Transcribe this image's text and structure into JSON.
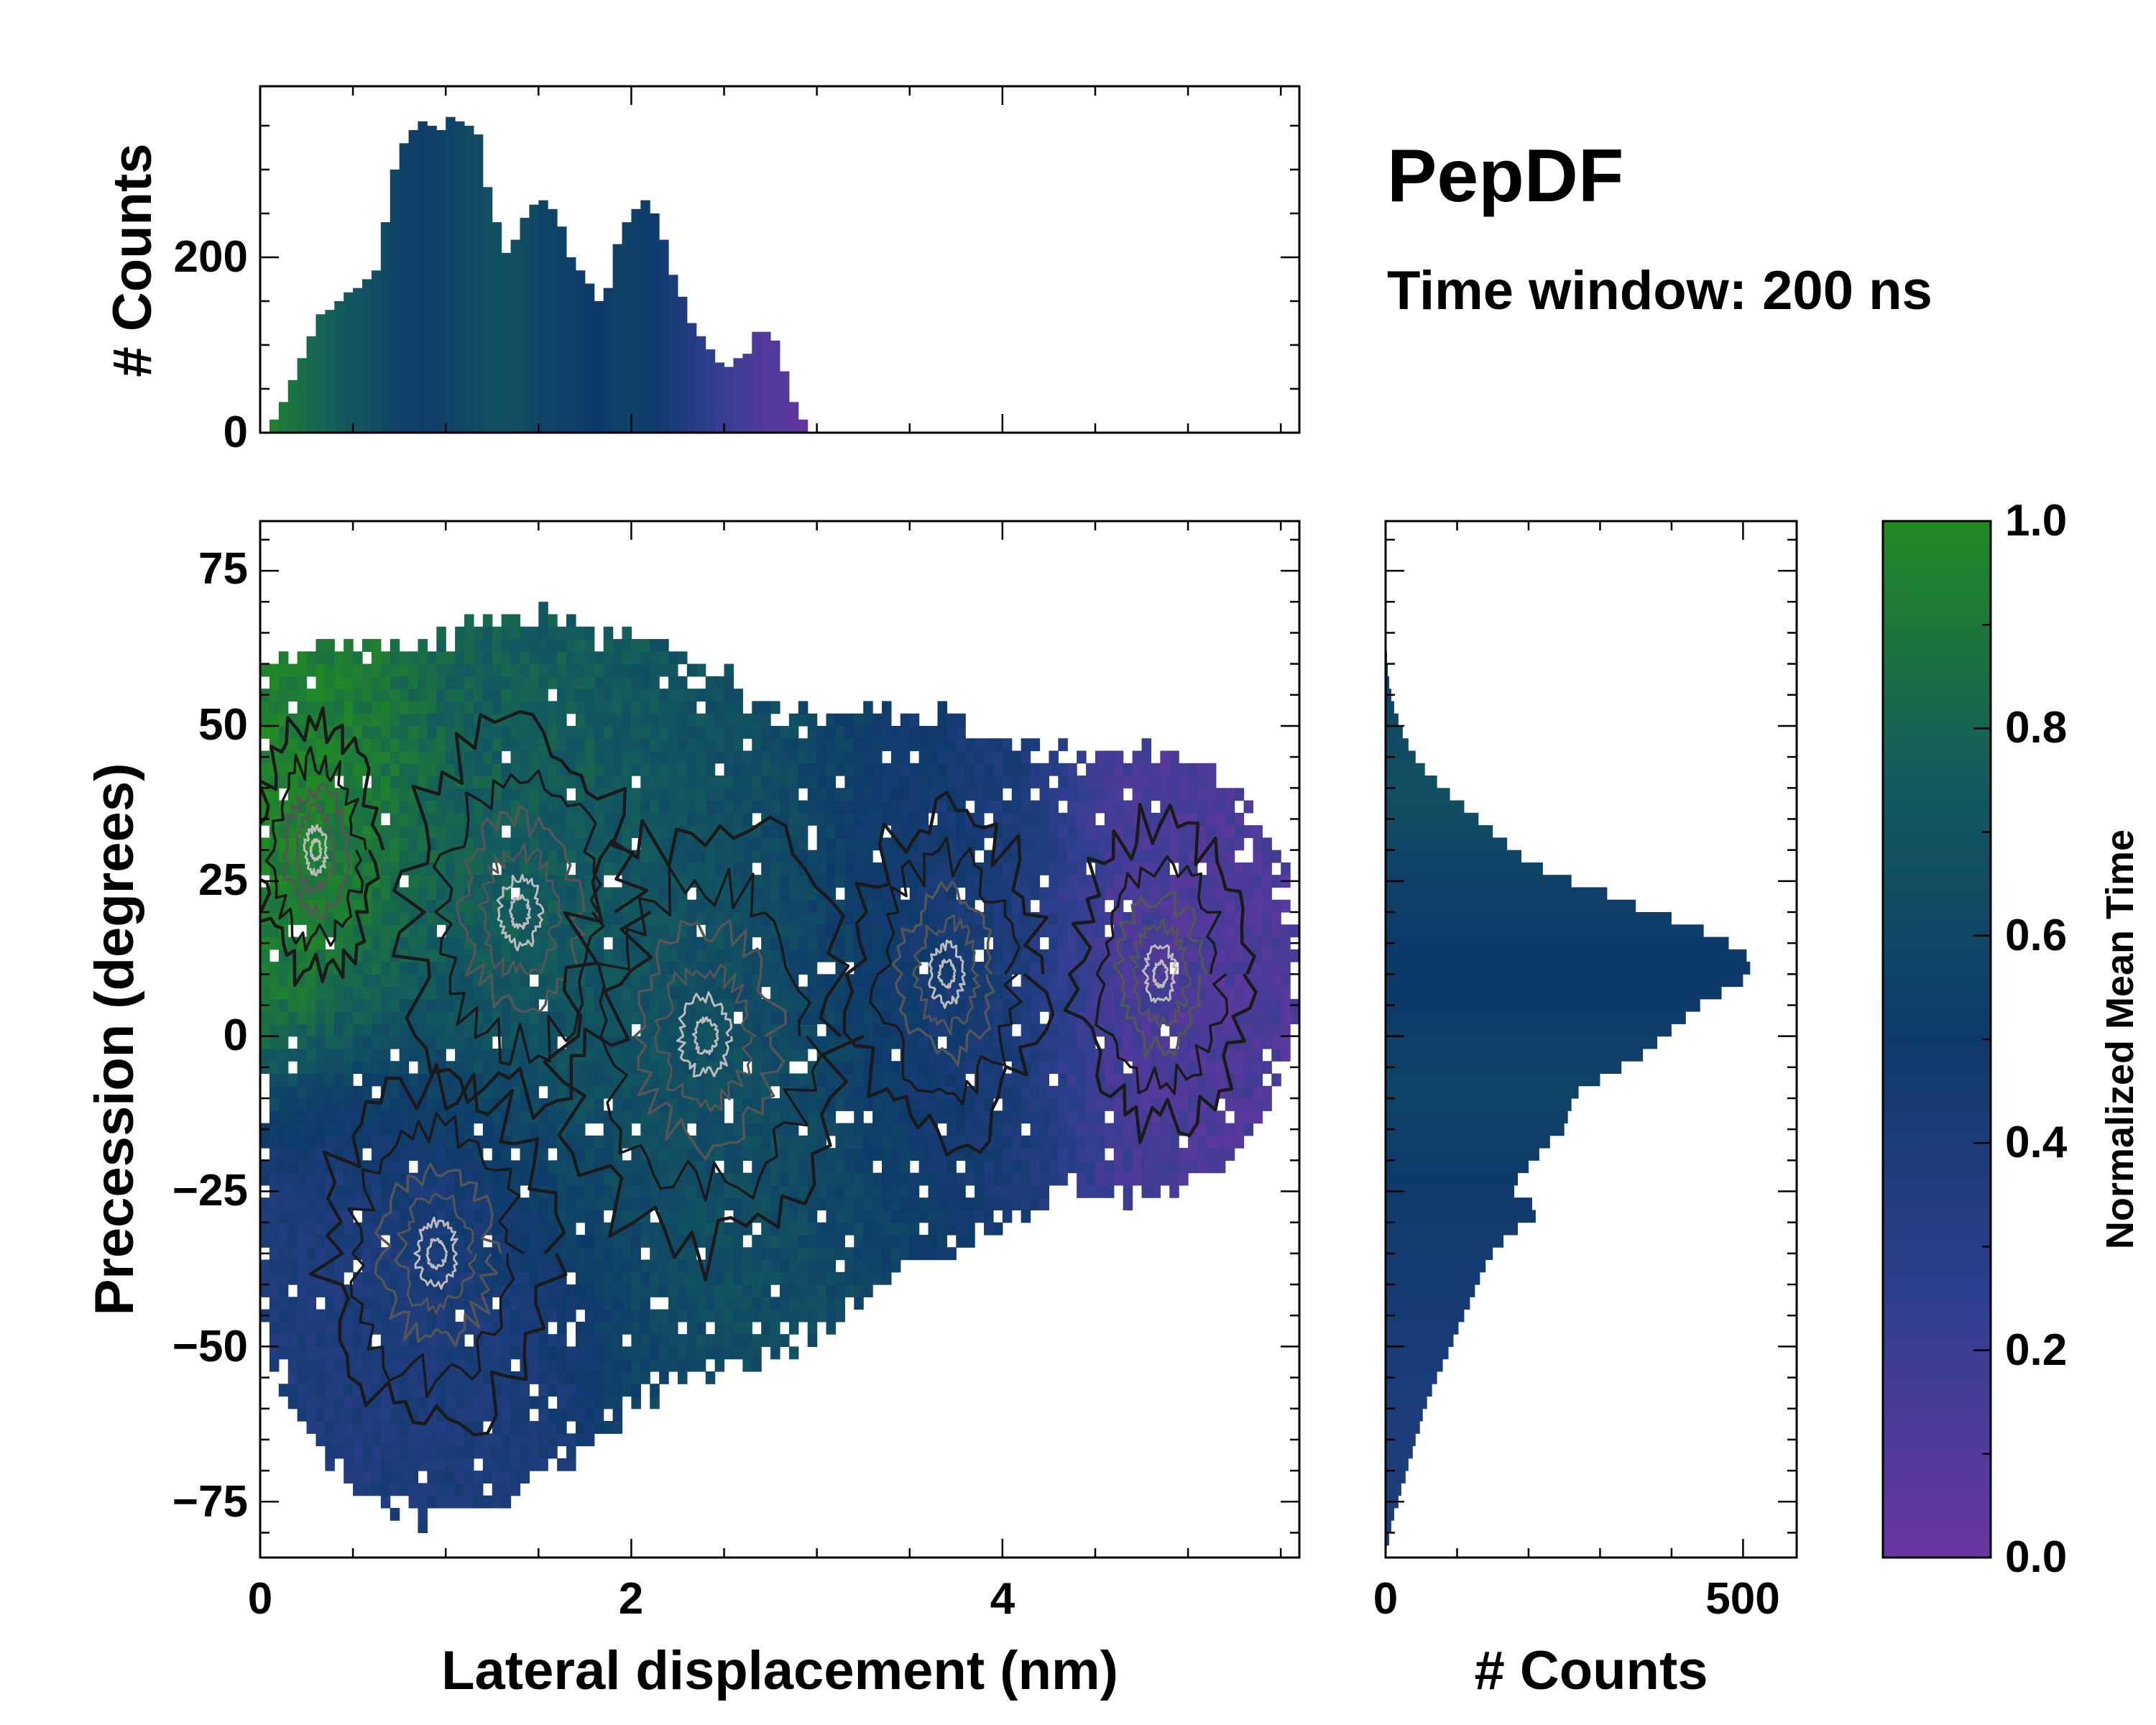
{
  "title": "PepDF",
  "subtitle": "Time window: 200 ns",
  "colors": {
    "colormap": [
      "#6a36a2",
      "#2e3f8e",
      "#0e3a6a",
      "#135a5e",
      "#228b22"
    ],
    "contour_dark": "#1a1a1a",
    "contour_mid": "#555555",
    "contour_light": "#bbbbbb"
  },
  "chart_data": [
    {
      "id": "main",
      "type": "heatmap",
      "xlabel": "Lateral displacement (nm)",
      "ylabel": "Precession (degrees)",
      "xlim": [
        0,
        5.6
      ],
      "ylim": [
        -84,
        83
      ],
      "xticks": [
        0,
        2,
        4
      ],
      "xtick_labels": [
        "0",
        "2",
        "4"
      ],
      "yticks": [
        75,
        50,
        25,
        0,
        -25,
        -50,
        -75
      ],
      "ytick_labels": [
        "75",
        "50",
        "25",
        "0",
        "−25",
        "−50",
        "−75"
      ],
      "clusters": [
        {
          "x": 1.4,
          "y": 20,
          "value": 0.78
        },
        {
          "x": 0.95,
          "y": -35,
          "value": 0.38
        },
        {
          "x": 3.7,
          "y": 10,
          "value": 0.42
        },
        {
          "x": 4.85,
          "y": 10,
          "value": 0.12
        },
        {
          "x": 2.4,
          "y": 0,
          "value": 0.65
        },
        {
          "x": 0.3,
          "y": 30,
          "value": 0.95
        }
      ]
    },
    {
      "id": "top-histogram",
      "type": "bar",
      "ylabel": "# Counts",
      "xlim": [
        0,
        5.6
      ],
      "ylim": [
        0,
        395
      ],
      "yticks": [
        0,
        200
      ],
      "ytick_labels": [
        "0",
        "200"
      ],
      "x_start": 0.05,
      "bin_width": 0.05,
      "values": [
        15,
        35,
        60,
        85,
        110,
        135,
        140,
        150,
        160,
        165,
        175,
        185,
        240,
        300,
        330,
        345,
        355,
        350,
        345,
        360,
        355,
        350,
        340,
        280,
        240,
        205,
        220,
        245,
        260,
        265,
        255,
        235,
        200,
        185,
        170,
        150,
        165,
        215,
        240,
        255,
        265,
        250,
        220,
        180,
        155,
        125,
        110,
        95,
        80,
        75,
        85,
        90,
        115,
        115,
        105,
        70,
        35,
        15
      ],
      "value_colors": [
        0.95,
        0.9,
        0.88,
        0.85,
        0.82,
        0.8,
        0.78,
        0.75,
        0.72,
        0.7,
        0.68,
        0.66,
        0.62,
        0.58,
        0.55,
        0.53,
        0.52,
        0.53,
        0.55,
        0.57,
        0.6,
        0.62,
        0.64,
        0.66,
        0.67,
        0.66,
        0.65,
        0.64,
        0.6,
        0.58,
        0.56,
        0.55,
        0.54,
        0.52,
        0.5,
        0.5,
        0.52,
        0.55,
        0.56,
        0.54,
        0.52,
        0.48,
        0.45,
        0.42,
        0.38,
        0.33,
        0.3,
        0.25,
        0.22,
        0.2,
        0.17,
        0.15,
        0.12,
        0.1,
        0.1,
        0.08,
        0.06,
        0.05
      ]
    },
    {
      "id": "right-histogram",
      "type": "bar",
      "xlabel": "# Counts",
      "xlim": [
        0,
        575
      ],
      "ylim": [
        -84,
        83
      ],
      "xticks": [
        0,
        500
      ],
      "xtick_labels": [
        "0",
        "500"
      ],
      "y_start": -82,
      "bin_width": 2,
      "values": [
        5,
        8,
        12,
        18,
        22,
        28,
        32,
        38,
        42,
        48,
        52,
        58,
        65,
        72,
        80,
        88,
        95,
        102,
        110,
        118,
        125,
        132,
        140,
        150,
        165,
        185,
        210,
        205,
        180,
        185,
        200,
        215,
        230,
        250,
        255,
        260,
        270,
        300,
        330,
        360,
        380,
        400,
        420,
        440,
        470,
        500,
        510,
        505,
        480,
        445,
        400,
        350,
        310,
        260,
        220,
        190,
        170,
        150,
        130,
        110,
        90,
        72,
        55,
        42,
        32,
        24,
        18,
        12,
        8,
        5,
        3,
        2
      ],
      "value_colors": [
        0.38,
        0.38,
        0.38,
        0.38,
        0.38,
        0.38,
        0.39,
        0.39,
        0.39,
        0.4,
        0.4,
        0.4,
        0.41,
        0.41,
        0.42,
        0.42,
        0.43,
        0.43,
        0.44,
        0.44,
        0.45,
        0.45,
        0.46,
        0.46,
        0.47,
        0.47,
        0.48,
        0.48,
        0.49,
        0.5,
        0.51,
        0.52,
        0.53,
        0.54,
        0.55,
        0.56,
        0.57,
        0.56,
        0.55,
        0.54,
        0.53,
        0.52,
        0.51,
        0.5,
        0.5,
        0.5,
        0.5,
        0.5,
        0.5,
        0.51,
        0.52,
        0.53,
        0.54,
        0.55,
        0.56,
        0.58,
        0.6,
        0.62,
        0.63,
        0.64,
        0.65,
        0.65,
        0.65,
        0.64,
        0.63,
        0.62,
        0.6,
        0.58,
        0.56,
        0.55,
        0.55,
        0.55
      ]
    },
    {
      "id": "colorbar",
      "type": "colorbar",
      "label": "Normalized Mean Time",
      "range": [
        0,
        1
      ],
      "ticks": [
        1.0,
        0.8,
        0.6,
        0.4,
        0.2,
        0.0
      ],
      "tick_labels": [
        "1.0",
        "0.8",
        "0.6",
        "0.4",
        "0.2",
        "0.0"
      ]
    }
  ]
}
